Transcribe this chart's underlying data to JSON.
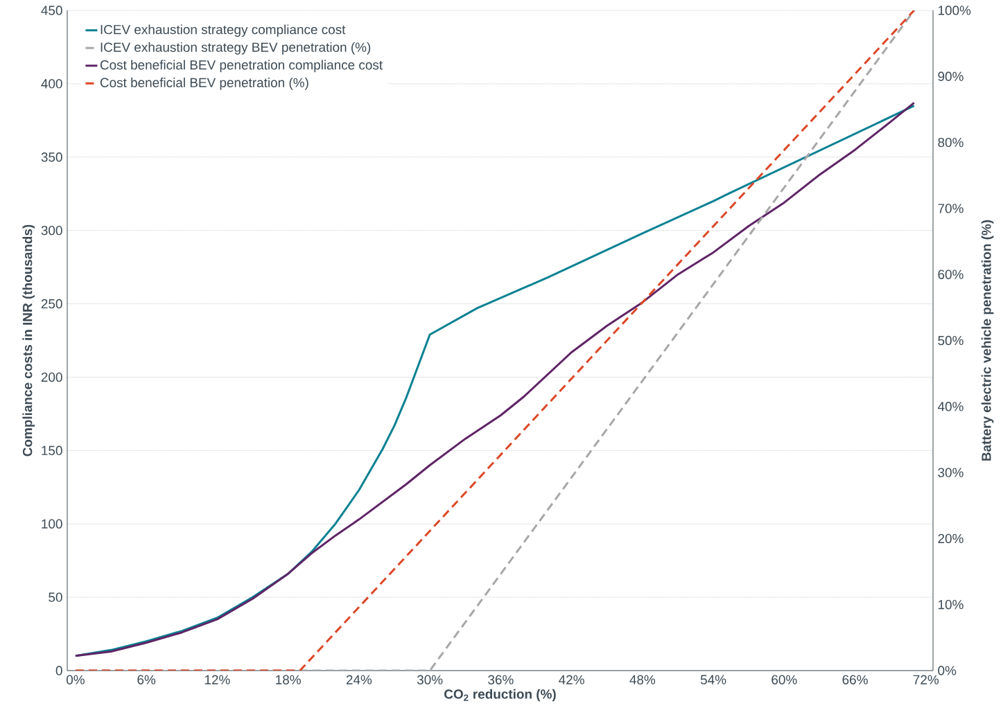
{
  "chart_data": {
    "type": "line",
    "xlabel": "CO$_{2}$ reduction (%)",
    "ylabel": "Compliance costs in INR (thousands)",
    "y2label": "Battery electric vehicle penetration (%)",
    "xlim": [
      -0.7,
      72.6
    ],
    "ylim": [
      0,
      450
    ],
    "y2lim": [
      0,
      100
    ],
    "xticks": [
      {
        "value": 0,
        "label": "0%"
      },
      {
        "value": 6,
        "label": "6%"
      },
      {
        "value": 12,
        "label": "12%"
      },
      {
        "value": 18,
        "label": "18%"
      },
      {
        "value": 24,
        "label": "24%"
      },
      {
        "value": 30,
        "label": "30%"
      },
      {
        "value": 36,
        "label": "36%"
      },
      {
        "value": 42,
        "label": "42%"
      },
      {
        "value": 48,
        "label": "48%"
      },
      {
        "value": 54,
        "label": "54%"
      },
      {
        "value": 60,
        "label": "60%"
      },
      {
        "value": 66,
        "label": "66%"
      },
      {
        "value": 72,
        "label": "72%"
      }
    ],
    "yticks": [
      0,
      50,
      100,
      150,
      200,
      250,
      300,
      350,
      400,
      450
    ],
    "y2ticks": [
      {
        "value": 0,
        "label": "0%"
      },
      {
        "value": 10,
        "label": "10%"
      },
      {
        "value": 20,
        "label": "20%"
      },
      {
        "value": 30,
        "label": "30%"
      },
      {
        "value": 40,
        "label": "40%"
      },
      {
        "value": 50,
        "label": "50%"
      },
      {
        "value": 60,
        "label": "60%"
      },
      {
        "value": 70,
        "label": "70%"
      },
      {
        "value": 80,
        "label": "80%"
      },
      {
        "value": 90,
        "label": "90%"
      },
      {
        "value": 100,
        "label": "100%"
      }
    ],
    "grid": "y",
    "legend": "top left",
    "marker": "none",
    "series": [
      {
        "name": "ICEV exhaustion strategy compliance cost",
        "color": "#0a8193",
        "line_style": "solid",
        "x": [
          0,
          3,
          6,
          9,
          12,
          15,
          18,
          20,
          22,
          24,
          26,
          27,
          28,
          30,
          34,
          38,
          40,
          48,
          54,
          55,
          71
        ],
        "values": [
          10,
          14,
          20,
          27,
          36,
          50,
          66,
          81,
          100,
          123,
          151,
          167,
          186,
          229,
          247,
          261,
          268,
          298,
          320,
          324,
          385
        ]
      },
      {
        "name": "ICEV exhaustion strategy BEV penetration (%)",
        "color": "#a7a7a9",
        "line_style": "dashed",
        "axis": "y2",
        "x": [
          0,
          30,
          71
        ],
        "values": [
          0,
          0,
          100
        ]
      },
      {
        "name": "Cost beneficial BEV penetration compliance cost",
        "color": "#5f2466",
        "line_style": "solid",
        "x": [
          0,
          3,
          6,
          9,
          12,
          15,
          18,
          20,
          22,
          24,
          28,
          30,
          33,
          36,
          38,
          42,
          45,
          48,
          51,
          54,
          57,
          60,
          63,
          66,
          69,
          71
        ],
        "values": [
          10,
          13,
          19,
          26,
          35,
          49,
          66,
          80,
          92,
          103,
          127,
          140,
          158,
          174,
          187,
          217,
          235,
          251,
          270,
          285,
          303,
          319,
          338,
          355,
          374,
          387
        ]
      },
      {
        "name": "Cost beneficial BEV penetration (%)",
        "color": "#dc4727",
        "line_style": "dashed",
        "axis": "y2",
        "x": [
          0,
          19,
          71
        ],
        "values": [
          0,
          0,
          100
        ]
      }
    ]
  }
}
